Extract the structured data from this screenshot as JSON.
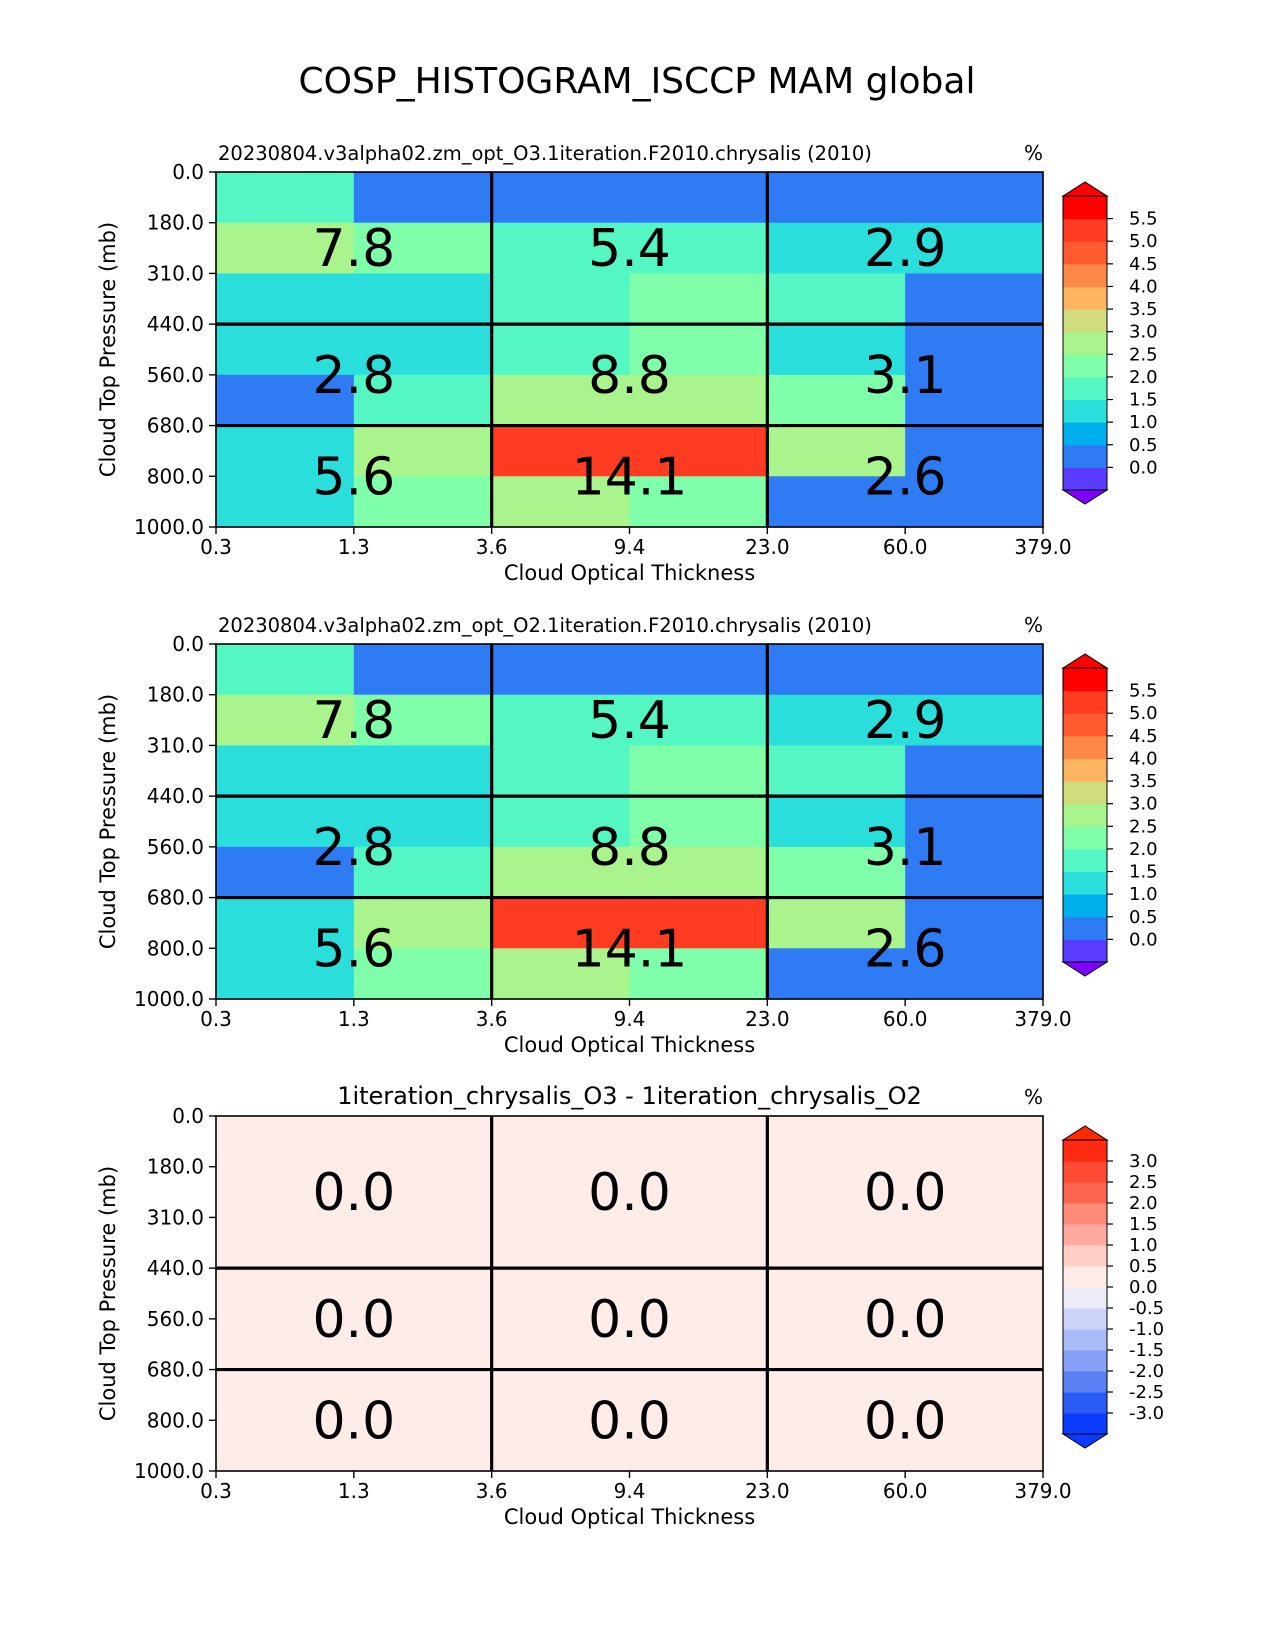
{
  "figure_title": "COSP_HISTOGRAM_ISCCP MAM global",
  "chart_data": [
    {
      "type": "heatmap",
      "title": "20230804.v3alpha02.zm_opt_O3.1iteration.F2010.chrysalis (2010)",
      "units": "%",
      "xlabel": "Cloud Optical Thickness",
      "ylabel": "Cloud Top Pressure (mb)",
      "x_tick_labels": [
        "0.3",
        "1.3",
        "3.6",
        "9.4",
        "23.0",
        "60.0",
        "379.0"
      ],
      "y_tick_labels": [
        "0.0",
        "180.0",
        "310.0",
        "440.0",
        "560.0",
        "680.0",
        "800.0",
        "1000.0"
      ],
      "cells": [
        [
          1.6,
          0.2,
          0.2,
          0.2,
          0.2,
          0.2
        ],
        [
          2.6,
          2.1,
          1.6,
          1.6,
          1.2,
          1.2
        ],
        [
          1.2,
          1.2,
          1.6,
          2.1,
          1.6,
          0.2
        ],
        [
          1.2,
          1.2,
          1.6,
          2.1,
          1.2,
          0.2
        ],
        [
          0.2,
          1.6,
          2.8,
          2.8,
          2.1,
          0.2
        ],
        [
          1.2,
          2.6,
          5.2,
          5.2,
          2.6,
          0.2
        ],
        [
          1.2,
          2.1,
          2.6,
          2.1,
          0.2,
          0.2
        ]
      ],
      "group_labels": [
        [
          "7.8",
          "5.4",
          "2.9"
        ],
        [
          "2.8",
          "8.8",
          "3.1"
        ],
        [
          "5.6",
          "14.1",
          "2.6"
        ]
      ],
      "colorbar": {
        "tick_labels": [
          "5.5",
          "5.0",
          "4.5",
          "4.0",
          "3.5",
          "3.0",
          "2.5",
          "2.0",
          "1.5",
          "1.0",
          "0.5",
          "0.0"
        ],
        "levels": [
          0.0,
          0.5,
          1.0,
          1.5,
          2.0,
          2.5,
          3.0,
          3.5,
          4.0,
          4.5,
          5.0,
          5.5
        ],
        "colors": [
          "#5a3cff",
          "#2e7bf4",
          "#00b0ec",
          "#2adedc",
          "#54f7c4",
          "#80ffab",
          "#a9f48d",
          "#d1dc7e",
          "#ffb462",
          "#ff8a48",
          "#ff5a30",
          "#ff3b22",
          "#ff0000"
        ],
        "under_color": "#8000ff",
        "over_color": "#ff0000"
      }
    },
    {
      "type": "heatmap",
      "title": "20230804.v3alpha02.zm_opt_O2.1iteration.F2010.chrysalis (2010)",
      "units": "%",
      "xlabel": "Cloud Optical Thickness",
      "ylabel": "Cloud Top Pressure (mb)",
      "x_tick_labels": [
        "0.3",
        "1.3",
        "3.6",
        "9.4",
        "23.0",
        "60.0",
        "379.0"
      ],
      "y_tick_labels": [
        "0.0",
        "180.0",
        "310.0",
        "440.0",
        "560.0",
        "680.0",
        "800.0",
        "1000.0"
      ],
      "cells": [
        [
          1.6,
          0.2,
          0.2,
          0.2,
          0.2,
          0.2
        ],
        [
          2.6,
          2.1,
          1.6,
          1.6,
          1.2,
          1.2
        ],
        [
          1.2,
          1.2,
          1.6,
          2.1,
          1.6,
          0.2
        ],
        [
          1.2,
          1.2,
          1.6,
          2.1,
          1.2,
          0.2
        ],
        [
          0.2,
          1.6,
          2.8,
          2.8,
          2.1,
          0.2
        ],
        [
          1.2,
          2.6,
          5.2,
          5.2,
          2.6,
          0.2
        ],
        [
          1.2,
          2.1,
          2.6,
          2.1,
          0.2,
          0.2
        ]
      ],
      "group_labels": [
        [
          "7.8",
          "5.4",
          "2.9"
        ],
        [
          "2.8",
          "8.8",
          "3.1"
        ],
        [
          "5.6",
          "14.1",
          "2.6"
        ]
      ],
      "colorbar": {
        "tick_labels": [
          "5.5",
          "5.0",
          "4.5",
          "4.0",
          "3.5",
          "3.0",
          "2.5",
          "2.0",
          "1.5",
          "1.0",
          "0.5",
          "0.0"
        ],
        "levels": [
          0.0,
          0.5,
          1.0,
          1.5,
          2.0,
          2.5,
          3.0,
          3.5,
          4.0,
          4.5,
          5.0,
          5.5
        ],
        "colors": [
          "#5a3cff",
          "#2e7bf4",
          "#00b0ec",
          "#2adedc",
          "#54f7c4",
          "#80ffab",
          "#a9f48d",
          "#d1dc7e",
          "#ffb462",
          "#ff8a48",
          "#ff5a30",
          "#ff3b22",
          "#ff0000"
        ],
        "under_color": "#8000ff",
        "over_color": "#ff0000"
      }
    },
    {
      "type": "heatmap",
      "title": "1iteration_chrysalis_O3 - 1iteration_chrysalis_O2",
      "units": "%",
      "xlabel": "Cloud Optical Thickness",
      "ylabel": "Cloud Top Pressure (mb)",
      "x_tick_labels": [
        "0.3",
        "1.3",
        "3.6",
        "9.4",
        "23.0",
        "60.0",
        "379.0"
      ],
      "y_tick_labels": [
        "0.0",
        "180.0",
        "310.0",
        "440.0",
        "560.0",
        "680.0",
        "800.0",
        "1000.0"
      ],
      "cells": [
        [
          0.0,
          0.0,
          0.0,
          0.0,
          0.0,
          0.0
        ],
        [
          0.0,
          0.0,
          0.0,
          0.0,
          0.0,
          0.0
        ],
        [
          0.0,
          0.0,
          0.0,
          0.0,
          0.0,
          0.0
        ],
        [
          0.0,
          0.0,
          0.0,
          0.0,
          0.0,
          0.0
        ],
        [
          0.0,
          0.0,
          0.0,
          0.0,
          0.0,
          0.0
        ],
        [
          0.0,
          0.0,
          0.0,
          0.0,
          0.0,
          0.0
        ],
        [
          0.0,
          0.0,
          0.0,
          0.0,
          0.0,
          0.0
        ]
      ],
      "group_labels": [
        [
          "0.0",
          "0.0",
          "0.0"
        ],
        [
          "0.0",
          "0.0",
          "0.0"
        ],
        [
          "0.0",
          "0.0",
          "0.0"
        ]
      ],
      "colorbar": {
        "tick_labels": [
          "3.0",
          "2.5",
          "2.0",
          "1.5",
          "1.0",
          "0.5",
          "0.0",
          "-0.5",
          "-1.0",
          "-1.5",
          "-2.0",
          "-2.5",
          "-3.0"
        ],
        "levels": [
          -3.0,
          -2.5,
          -2.0,
          -1.5,
          -1.0,
          -0.5,
          0.0,
          0.5,
          1.0,
          1.5,
          2.0,
          2.5,
          3.0
        ],
        "colors": [
          "#0b3cff",
          "#2a5cf5",
          "#5a80f4",
          "#86a0f6",
          "#aabcf8",
          "#cbd4f8",
          "#ececf8",
          "#fdece8",
          "#ffcfc6",
          "#ffaaa0",
          "#ff8a78",
          "#ff6450",
          "#ff4a34",
          "#ff2a10"
        ],
        "under_color": "#0a3cff",
        "over_color": "#ff2a00"
      }
    }
  ]
}
